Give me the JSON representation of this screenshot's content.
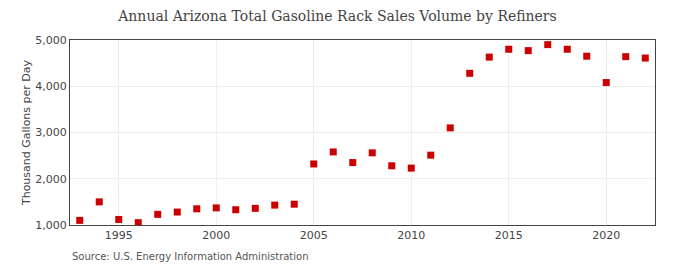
{
  "chart_data": {
    "type": "scatter",
    "title": "Annual Arizona Total Gasoline Rack Sales Volume by Refiners",
    "ylabel": "Thousand Gallons per Day",
    "annotations": [
      "Source: U.S. Energy Information Administration"
    ],
    "x": [
      1993,
      1994,
      1995,
      1996,
      1997,
      1998,
      1999,
      2000,
      2001,
      2002,
      2003,
      2004,
      2005,
      2006,
      2007,
      2008,
      2009,
      2010,
      2011,
      2012,
      2013,
      2014,
      2015,
      2016,
      2017,
      2018,
      2019,
      2020,
      2021,
      2022
    ],
    "values": [
      1100,
      1500,
      1120,
      1050,
      1230,
      1280,
      1350,
      1370,
      1330,
      1360,
      1430,
      1450,
      2320,
      2580,
      2350,
      2560,
      2280,
      2230,
      2510,
      3100,
      4280,
      4630,
      4800,
      4770,
      4900,
      4800,
      4650,
      4080,
      4640,
      4610
    ],
    "color": "#cc0000",
    "marker": "square",
    "xlim": [
      1992.5,
      2022.5
    ],
    "xticks": [
      1995,
      2000,
      2005,
      2010,
      2015,
      2020
    ],
    "ylim": [
      1000,
      5000
    ],
    "yticks": [
      {
        "value": 1000,
        "label": "1,000"
      },
      {
        "value": 2000,
        "label": "2,000"
      },
      {
        "value": 3000,
        "label": "3,000"
      },
      {
        "value": 4000,
        "label": "4,000"
      },
      {
        "value": 5000,
        "label": "5,000"
      }
    ],
    "grid": true
  }
}
